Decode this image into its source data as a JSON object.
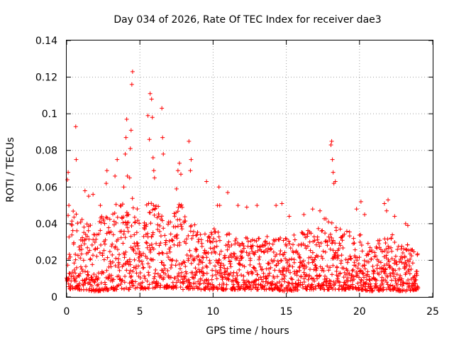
{
  "chart_data": {
    "type": "scatter",
    "title": "Day 034 of 2026, Rate Of TEC Index for receiver dae3",
    "xlabel": "GPS time / hours",
    "ylabel": "ROTI / TECUs",
    "xlim": [
      0,
      25
    ],
    "ylim": [
      0,
      0.14
    ],
    "xticks": [
      "0",
      "5",
      "10",
      "15",
      "20",
      "25"
    ],
    "yticks": [
      "0",
      "0.02",
      "0.04",
      "0.06",
      "0.08",
      "0.1",
      "0.12",
      "0.14"
    ],
    "grid": true,
    "marker": "+",
    "color": "#ff0000",
    "series": [
      {
        "x": [
          0.05,
          0.1,
          0.15,
          0.62,
          0.65,
          1.25,
          1.5,
          1.8,
          2.3,
          2.7,
          2.75,
          3.3,
          3.45,
          3.9,
          4.0,
          4.05,
          4.1,
          4.15,
          4.3,
          4.35,
          4.4,
          4.45,
          4.5,
          5.55,
          5.65,
          5.7,
          5.8,
          5.85,
          5.9,
          5.95,
          6.0,
          6.5,
          6.55,
          6.6,
          7.5,
          7.6,
          7.7,
          7.8,
          8.35,
          8.45,
          8.5,
          9.55,
          10.3,
          10.4,
          10.45,
          11.0,
          11.7,
          12.3,
          13.0,
          14.3,
          14.7,
          15.2,
          16.2,
          16.8,
          17.3,
          18.05,
          18.1,
          18.15,
          18.2,
          18.25,
          18.35,
          19.8,
          20.1,
          20.35,
          21.7,
          21.85,
          21.95,
          22.4,
          23.15,
          23.3
        ],
        "y": [
          0.064,
          0.068,
          0.05,
          0.093,
          0.075,
          0.058,
          0.055,
          0.056,
          0.05,
          0.062,
          0.069,
          0.066,
          0.075,
          0.06,
          0.078,
          0.087,
          0.097,
          0.066,
          0.065,
          0.081,
          0.091,
          0.116,
          0.123,
          0.099,
          0.086,
          0.111,
          0.108,
          0.098,
          0.076,
          0.069,
          0.065,
          0.103,
          0.087,
          0.078,
          0.059,
          0.069,
          0.073,
          0.067,
          0.085,
          0.069,
          0.075,
          0.063,
          0.05,
          0.06,
          0.05,
          0.057,
          0.05,
          0.049,
          0.05,
          0.05,
          0.051,
          0.044,
          0.045,
          0.048,
          0.047,
          0.083,
          0.085,
          0.075,
          0.068,
          0.062,
          0.063,
          0.048,
          0.052,
          0.045,
          0.051,
          0.047,
          0.053,
          0.044,
          0.04,
          0.039
        ],
        "density_envelope": {
          "hours": [
            0,
            1,
            2,
            3,
            4,
            5,
            6,
            7,
            8,
            9,
            10,
            11,
            12,
            13,
            14,
            15,
            16,
            17,
            18,
            19,
            20,
            21,
            22,
            23,
            24
          ],
          "upper": [
            0.045,
            0.05,
            0.042,
            0.048,
            0.058,
            0.05,
            0.052,
            0.042,
            0.055,
            0.036,
            0.038,
            0.035,
            0.032,
            0.034,
            0.033,
            0.032,
            0.036,
            0.04,
            0.045,
            0.036,
            0.035,
            0.03,
            0.036,
            0.03,
            0.025
          ],
          "lower": [
            0.004,
            0.004,
            0.003,
            0.004,
            0.004,
            0.004,
            0.005,
            0.005,
            0.004,
            0.004,
            0.004,
            0.004,
            0.004,
            0.004,
            0.004,
            0.003,
            0.004,
            0.004,
            0.004,
            0.004,
            0.004,
            0.003,
            0.004,
            0.003,
            0.004
          ]
        }
      }
    ]
  }
}
